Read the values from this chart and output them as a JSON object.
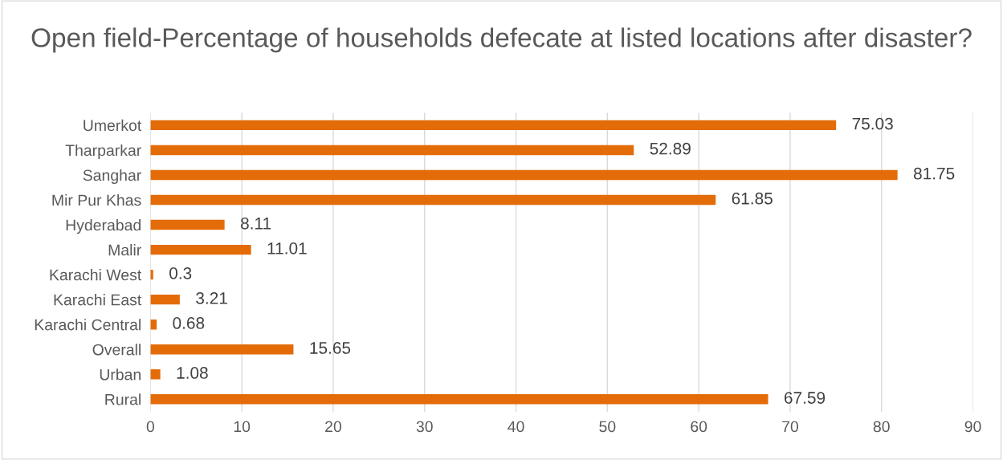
{
  "chart_data": {
    "type": "bar",
    "orientation": "horizontal",
    "title": "Open field-Percentage of households defecate at listed locations after disaster?",
    "categories": [
      "Umerkot",
      "Tharparkar",
      "Sanghar",
      "Mir Pur Khas",
      "Hyderabad",
      "Malir",
      "Karachi West",
      "Karachi East",
      "Karachi Central",
      "Overall",
      "Urban",
      "Rural"
    ],
    "values": [
      75.03,
      52.89,
      81.75,
      61.85,
      8.11,
      11.01,
      0.3,
      3.21,
      0.68,
      15.65,
      1.08,
      67.59
    ],
    "color": "#e36c09",
    "xlim": [
      0,
      90
    ],
    "xticks": [
      0,
      10,
      20,
      30,
      40,
      50,
      60,
      70,
      80,
      90
    ],
    "grid": "x",
    "data_labels": true,
    "legend": false
  }
}
